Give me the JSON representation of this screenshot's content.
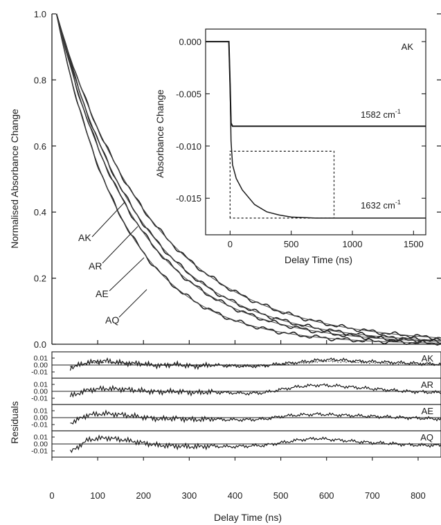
{
  "chart_data": [
    {
      "id": "main",
      "type": "line",
      "xlabel": "",
      "ylabel": "Normalised Absorbance Change",
      "xlim": [
        0,
        850
      ],
      "ylim": [
        0,
        1.0
      ],
      "yticks": [
        "0.0",
        "0.2",
        "0.4",
        "0.6",
        "0.8",
        "1.0"
      ],
      "grid": false,
      "series": [
        {
          "name": "AK",
          "tau": 212
        },
        {
          "name": "AR",
          "tau": 188
        },
        {
          "name": "AE",
          "tau": 175
        },
        {
          "name": "AQ",
          "tau": 148
        }
      ],
      "x": [
        10,
        25,
        50,
        75,
        100,
        125,
        150,
        175,
        200,
        250,
        300,
        350,
        400,
        450,
        500,
        550,
        600,
        650,
        700,
        750,
        800,
        850
      ],
      "annotations": [
        "AK",
        "AR",
        "AE",
        "AQ"
      ]
    },
    {
      "id": "inset",
      "type": "line",
      "xlabel": "Delay Time (ns)",
      "ylabel": "Absorbance Change",
      "xlim": [
        -200,
        1600
      ],
      "ylim": [
        -0.0185,
        0.0012
      ],
      "xticks": [
        "0",
        "500",
        "1000",
        "1500"
      ],
      "yticks": [
        "0.000",
        "-0.005",
        "-0.010",
        "-0.015"
      ],
      "title_label": "AK",
      "series": [
        {
          "name": "1582 cm⁻¹",
          "label_main": "1582 cm",
          "label_sup": "-1",
          "t": [
            -200,
            -10,
            0,
            8,
            20,
            100,
            500,
            1000,
            1600
          ],
          "y": [
            0.0,
            0.0,
            -0.004,
            -0.0078,
            -0.0081,
            -0.0081,
            -0.0081,
            -0.0081,
            -0.0081
          ]
        },
        {
          "name": "1632 cm⁻¹",
          "label_main": "1632 cm",
          "label_sup": "-1",
          "t": [
            -200,
            -10,
            0,
            8,
            20,
            50,
            100,
            200,
            300,
            400,
            500,
            700,
            900,
            1200,
            1600
          ],
          "y": [
            0.0,
            0.0,
            -0.004,
            -0.0095,
            -0.0118,
            -0.0131,
            -0.0142,
            -0.0156,
            -0.0163,
            -0.0166,
            -0.0168,
            -0.0169,
            -0.0169,
            -0.0169,
            -0.0169
          ]
        }
      ],
      "dotted_box": {
        "t": [
          0,
          850
        ],
        "y": [
          -0.0169,
          -0.0105
        ]
      }
    },
    {
      "id": "residuals",
      "type": "line",
      "xlabel": "Delay Time (ns)",
      "ylabel": "Residuals",
      "xlim": [
        0,
        850
      ],
      "xticks": [
        "0",
        "100",
        "200",
        "300",
        "400",
        "500",
        "600",
        "700",
        "800"
      ],
      "yticks": [
        "0.01",
        "0.00",
        "-0.01"
      ],
      "panels": [
        {
          "name": "AK",
          "values": [
            -0.004,
            0.004,
            0.006,
            0.003,
            0.002,
            -0.001,
            0.001,
            -0.002,
            0.0,
            -0.001,
            -0.002,
            -0.001,
            0.002,
            0.004,
            0.007,
            0.008,
            0.006,
            0.005,
            0.004,
            0.003,
            0.002,
            0.001
          ]
        },
        {
          "name": "AR",
          "values": [
            -0.007,
            0.002,
            0.004,
            0.003,
            0.001,
            -0.001,
            0.0,
            -0.002,
            -0.001,
            -0.002,
            -0.003,
            -0.002,
            0.003,
            0.007,
            0.009,
            0.008,
            0.006,
            0.004,
            0.002,
            0.0,
            -0.001,
            -0.002
          ]
        },
        {
          "name": "AE",
          "values": [
            -0.008,
            0.004,
            0.006,
            0.004,
            0.001,
            -0.002,
            -0.001,
            -0.003,
            -0.002,
            -0.003,
            -0.003,
            -0.002,
            0.002,
            0.004,
            0.005,
            0.004,
            0.003,
            0.002,
            0.001,
            0.0,
            -0.001,
            -0.002
          ]
        },
        {
          "name": "AQ",
          "values": [
            -0.012,
            0.006,
            0.009,
            0.006,
            0.002,
            -0.002,
            -0.003,
            -0.004,
            -0.003,
            -0.004,
            -0.003,
            -0.002,
            0.002,
            0.006,
            0.008,
            0.006,
            0.004,
            0.002,
            0.001,
            -0.001,
            -0.002,
            -0.002
          ]
        }
      ]
    }
  ]
}
